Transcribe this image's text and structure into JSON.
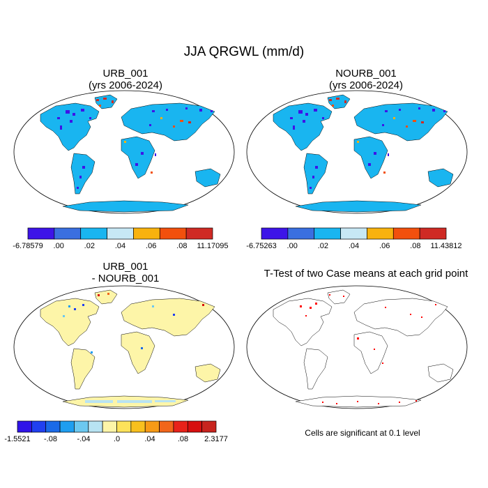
{
  "figure": {
    "title": "JJA QRGWL (mm/d)"
  },
  "panels": [
    {
      "title_line1": "URB_001",
      "title_line2": "(yrs 2006-2024)"
    },
    {
      "title_line1": "NOURB_001",
      "title_line2": "(yrs 2006-2024)"
    },
    {
      "title_line1": "URB_001",
      "title_line2": "- NOURB_001"
    },
    {
      "title_line1": "T-Test of two Case means at each grid point",
      "title_line2": ""
    }
  ],
  "ttest_note": "Cells are significant at 0.1 level",
  "colors": {
    "land_base": "#19b5f0",
    "diff_land": "#fdf5a8",
    "significant": "#ff0000",
    "coast": "#000000"
  },
  "chart_data": [
    {
      "type": "heatmap",
      "title": "URB_001 (yrs 2006-2024)",
      "colorbar": {
        "labels": [
          "-6.78579",
          ".00",
          ".02",
          ".04",
          ".06",
          ".08",
          "11.17095"
        ],
        "colors": [
          "#3d14e8",
          "#3a6fe0",
          "#19b5f0",
          "#c7e8f5",
          "#f8b20e",
          "#f2500d",
          "#cf2a24"
        ],
        "min": -6.78579,
        "max": 11.17095
      }
    },
    {
      "type": "heatmap",
      "title": "NOURB_001 (yrs 2006-2024)",
      "colorbar": {
        "labels": [
          "-6.75263",
          ".00",
          ".02",
          ".04",
          ".06",
          ".08",
          "11.43812"
        ],
        "colors": [
          "#3d14e8",
          "#3a6fe0",
          "#19b5f0",
          "#c7e8f5",
          "#f8b20e",
          "#f2500d",
          "#cf2a24"
        ],
        "min": -6.75263,
        "max": 11.43812
      }
    },
    {
      "type": "heatmap",
      "title": "URB_001 - NOURB_001",
      "colorbar": {
        "labels": [
          "-1.5521",
          "-.08",
          "-.04",
          ".0",
          ".04",
          ".08",
          "2.3177"
        ],
        "colors": [
          "#3014e8",
          "#2140f0",
          "#1a6ae8",
          "#1e9ef0",
          "#6cc8f0",
          "#b8e3f2",
          "#fdf5a8",
          "#fde25a",
          "#f8c01e",
          "#f79a16",
          "#f2661a",
          "#e8221a",
          "#d70f0f",
          "#c8241e"
        ],
        "min": -1.5521,
        "max": 2.3177
      }
    },
    {
      "type": "heatmap",
      "title": "T-Test of two Case means at each grid point"
    }
  ]
}
